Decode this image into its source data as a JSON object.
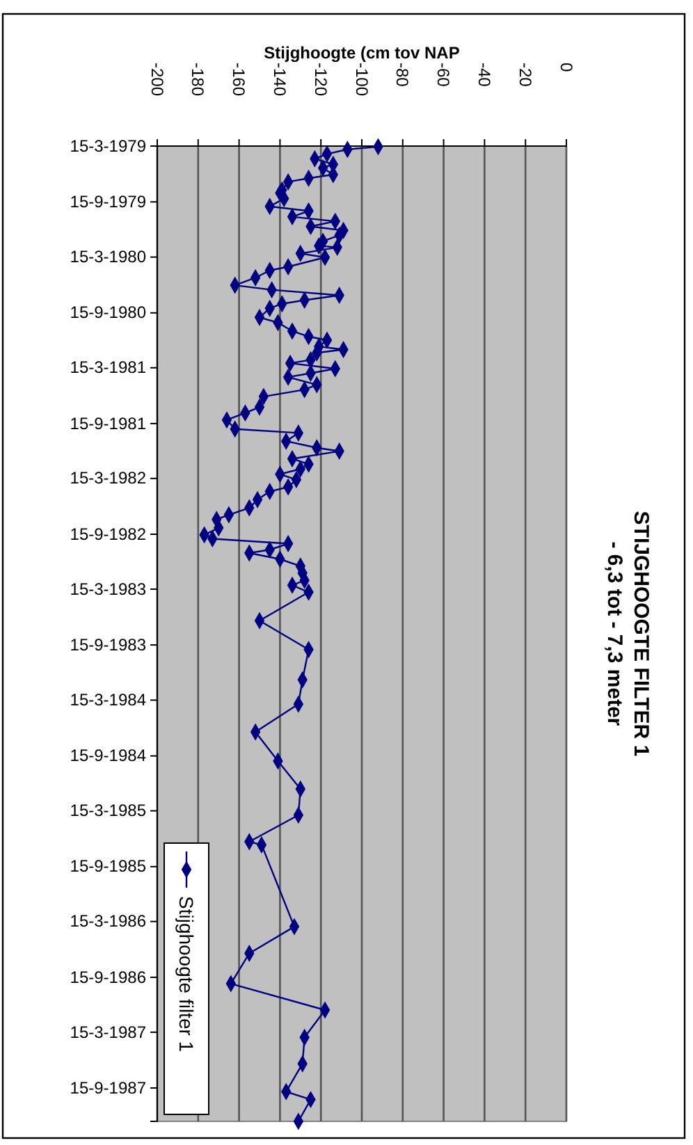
{
  "chart_data": {
    "type": "line",
    "orientation": "horizontal",
    "title": "STIJGHOOGTE FILTER 1",
    "subtitle": "- 6,3 tot - 7,3 meter",
    "ylabel": "Stijghoogte (cm tov NAP",
    "x": [
      "1979-03-17",
      "1979-03-26",
      "1979-04-10",
      "1979-04-26",
      "1979-05-14",
      "1979-05-26",
      "1979-06-17",
      "1979-06-29",
      "1979-07-11",
      "1979-08-07",
      "1979-08-17",
      "1979-09-04",
      "1979-09-30",
      "1979-10-15",
      "1979-11-03",
      "1979-11-18",
      "1979-12-05",
      "1979-12-18",
      "1980-01-03",
      "1980-01-23",
      "1980-02-07",
      "1980-02-12",
      "1980-03-03",
      "1980-03-16",
      "1980-04-16",
      "1980-04-28",
      "1980-05-22",
      "1980-06-16",
      "1980-07-01",
      "1980-07-19",
      "1980-08-04",
      "1980-08-16",
      "1980-08-31",
      "1980-09-30",
      "1980-10-17",
      "1980-11-14",
      "1980-12-02",
      "1980-12-14",
      "1981-01-04",
      "1981-01-14",
      "1981-01-25",
      "1981-02-17",
      "1981-02-28",
      "1981-03-18",
      "1981-04-02",
      "1981-04-15",
      "1981-05-10",
      "1981-05-26",
      "1981-06-18",
      "1981-07-23",
      "1981-08-11",
      "1981-09-03",
      "1981-10-03",
      "1981-10-16",
      "1981-11-12",
      "1981-12-04",
      "1981-12-15",
      "1982-01-09",
      "1982-01-27",
      "1982-02-12",
      "1982-03-01",
      "1982-03-19",
      "1982-04-12",
      "1982-04-27",
      "1982-05-24",
      "1982-06-20",
      "1982-07-13",
      "1982-07-28",
      "1982-08-25",
      "1982-09-17",
      "1982-09-30",
      "1982-10-16",
      "1982-11-05",
      "1982-11-16",
      "1982-12-06",
      "1982-12-29",
      "1983-01-21",
      "1983-02-14",
      "1983-03-02",
      "1983-03-25",
      "1983-06-27",
      "1983-09-30",
      "1984-01-08",
      "1984-03-28",
      "1984-06-28",
      "1984-10-02",
      "1985-01-02",
      "1985-03-29",
      "1985-06-25",
      "1985-07-05",
      "1986-04-01",
      "1986-06-28",
      "1986-10-06",
      "1987-01-01",
      "1987-04-01",
      "1987-06-27",
      "1987-09-27",
      "1987-10-23",
      "1988-01-03"
    ],
    "series": [
      {
        "name": "Stijghoogte filter 1",
        "color": "#000080",
        "values": [
          -92,
          -107,
          -117,
          -123,
          -114,
          -119,
          -114,
          -126,
          -136,
          -139,
          -140,
          -138,
          -145,
          -126,
          -134,
          -113,
          -125,
          -109,
          -111,
          -119,
          -121,
          -112,
          -130,
          -118,
          -136,
          -145,
          -152,
          -162,
          -144,
          -111,
          -128,
          -139,
          -145,
          -150,
          -141,
          -134,
          -126,
          -117,
          -121,
          -109,
          -122,
          -125,
          -135,
          -113,
          -125,
          -136,
          -122,
          -128,
          -148,
          -150,
          -157,
          -166,
          -162,
          -131,
          -137,
          -122,
          -111,
          -134,
          -126,
          -130,
          -140,
          -132,
          -136,
          -145,
          -151,
          -155,
          -165,
          -171,
          -170,
          -177,
          -173,
          -136,
          -145,
          -155,
          -140,
          -130,
          -129,
          -128,
          -134,
          -126,
          -150,
          -126,
          -129,
          -131,
          -152,
          -141,
          -130,
          -131,
          -155,
          -149,
          -133,
          -155,
          -164,
          -118,
          -128,
          -129,
          -137,
          -125,
          -131
        ]
      }
    ],
    "ylim": [
      "1988-01-03",
      "1979-03-15"
    ],
    "yticks": [
      {
        "value": "1979-03-15",
        "label": "15-3-1979"
      },
      {
        "value": "1979-09-15",
        "label": "15-9-1979"
      },
      {
        "value": "1980-03-15",
        "label": "15-3-1980"
      },
      {
        "value": "1980-09-15",
        "label": "15-9-1980"
      },
      {
        "value": "1981-03-15",
        "label": "15-3-1981"
      },
      {
        "value": "1981-09-15",
        "label": "15-9-1981"
      },
      {
        "value": "1982-03-15",
        "label": "15-3-1982"
      },
      {
        "value": "1982-09-15",
        "label": "15-9-1982"
      },
      {
        "value": "1983-03-15",
        "label": "15-3-1983"
      },
      {
        "value": "1983-09-15",
        "label": "15-9-1983"
      },
      {
        "value": "1984-03-15",
        "label": "15-3-1984"
      },
      {
        "value": "1984-09-15",
        "label": "15-9-1984"
      },
      {
        "value": "1985-03-15",
        "label": "15-3-1985"
      },
      {
        "value": "1985-09-15",
        "label": "15-9-1985"
      },
      {
        "value": "1986-03-15",
        "label": "15-3-1986"
      },
      {
        "value": "1986-09-15",
        "label": "15-9-1986"
      },
      {
        "value": "1987-03-15",
        "label": "15-3-1987"
      },
      {
        "value": "1987-09-15",
        "label": "15-9-1987"
      }
    ],
    "xlim": [
      -200,
      0
    ],
    "xticks": [
      -200,
      -180,
      -160,
      -140,
      -120,
      -100,
      -80,
      -60,
      -40,
      -20,
      0
    ],
    "grid": "x",
    "legend": "bottom left",
    "marker": "diamond",
    "line_style": "solid"
  }
}
